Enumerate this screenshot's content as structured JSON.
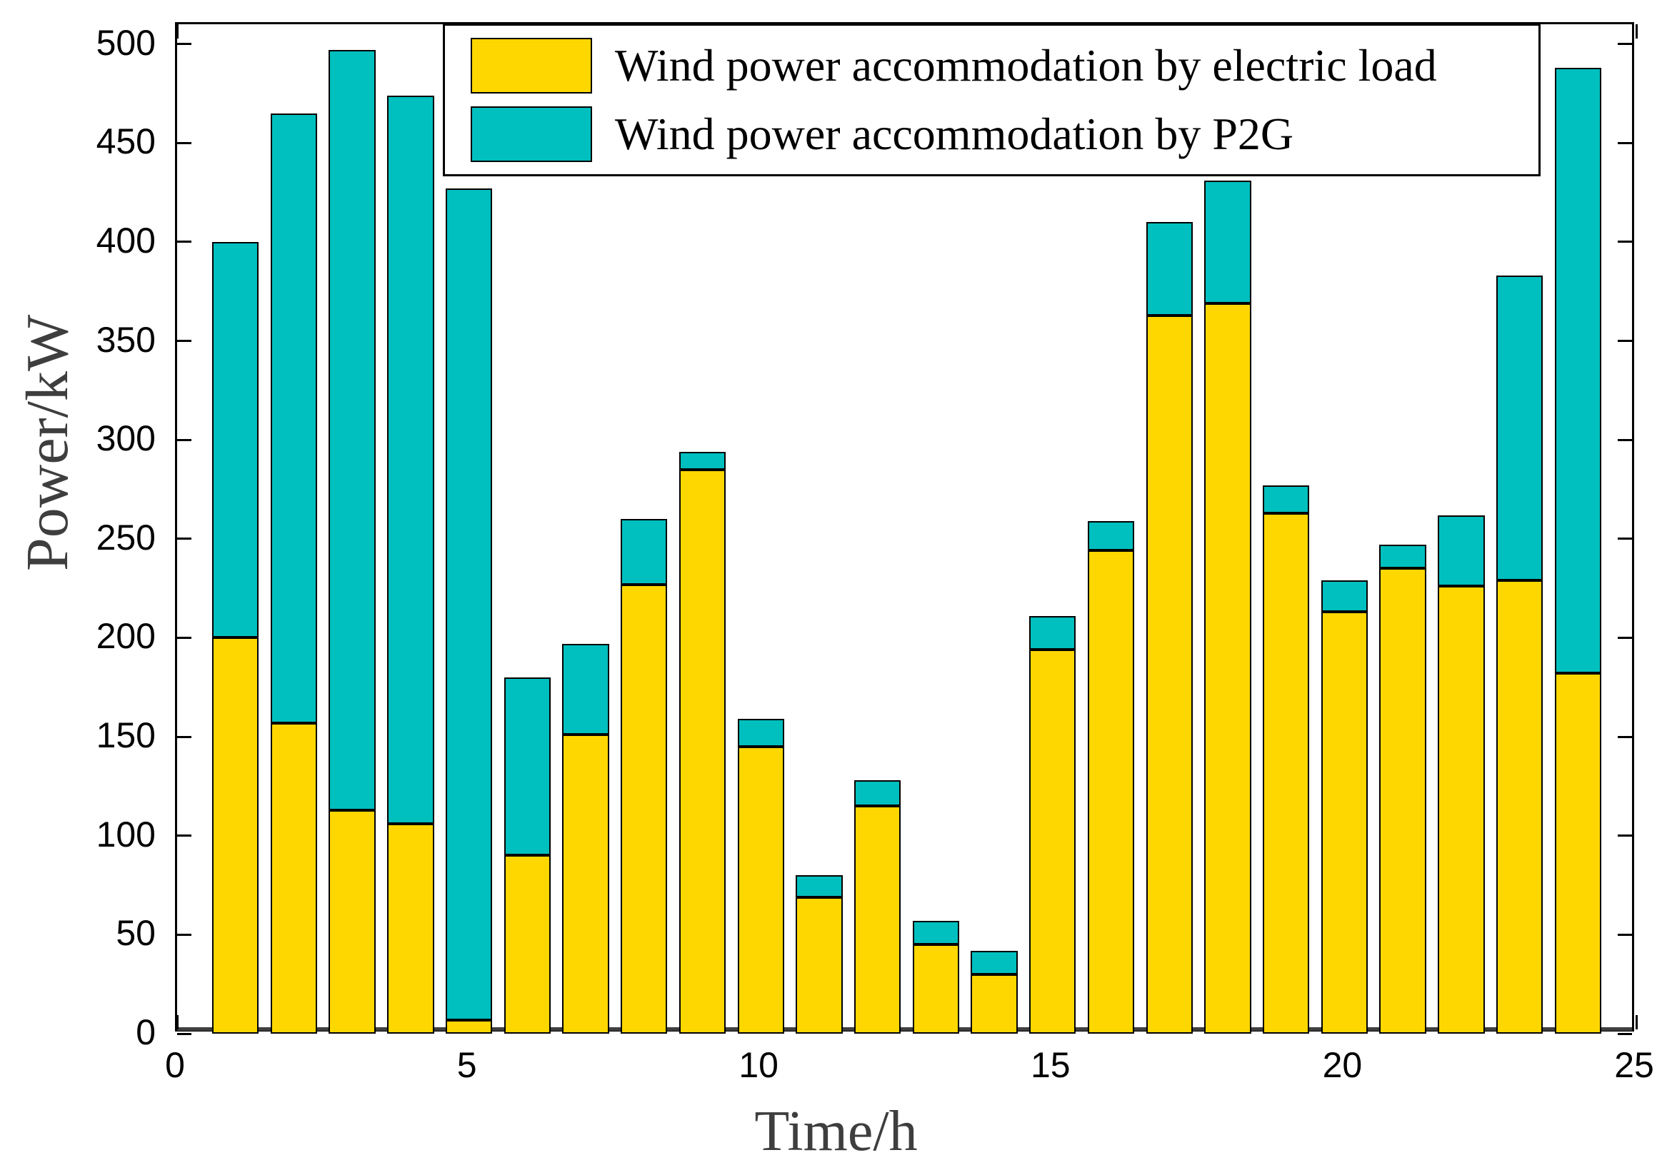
{
  "chart_data": {
    "type": "bar",
    "stacked": true,
    "title": "",
    "xlabel": "Time/h",
    "ylabel": "Power/kW",
    "x": [
      1,
      2,
      3,
      4,
      5,
      6,
      7,
      8,
      9,
      10,
      11,
      12,
      13,
      14,
      15,
      16,
      17,
      18,
      19,
      20,
      21,
      22,
      23,
      24
    ],
    "series": [
      {
        "name": "Wind power accommodation by electric load",
        "color": "#FFD700",
        "values": [
          200,
          157,
          113,
          106,
          7,
          90,
          151,
          227,
          285,
          145,
          69,
          115,
          45,
          30,
          194,
          244,
          363,
          369,
          263,
          213,
          235,
          226,
          229,
          182
        ]
      },
      {
        "name": "Wind power accommodation by P2G",
        "color": "#00BFBF",
        "values": [
          200,
          308,
          384,
          368,
          420,
          90,
          46,
          33,
          9,
          14,
          11,
          13,
          12,
          12,
          17,
          15,
          47,
          62,
          14,
          16,
          12,
          36,
          154,
          306
        ]
      }
    ],
    "totals": [
      400,
      465,
      497,
      474,
      427,
      180,
      197,
      260,
      294,
      159,
      80,
      128,
      57,
      42,
      211,
      259,
      410,
      431,
      277,
      229,
      247,
      262,
      383,
      488
    ],
    "xlim": [
      0,
      25
    ],
    "ylim": [
      0,
      510
    ],
    "xticks": [
      0,
      5,
      10,
      15,
      20,
      25
    ],
    "yticks": [
      0,
      50,
      100,
      150,
      200,
      250,
      300,
      350,
      400,
      450,
      500
    ],
    "bar_width": 0.8,
    "grid": false,
    "legend_position": "top-center-inside",
    "frame_color": "#000000",
    "axis_title_color": "#3e3e3e"
  }
}
